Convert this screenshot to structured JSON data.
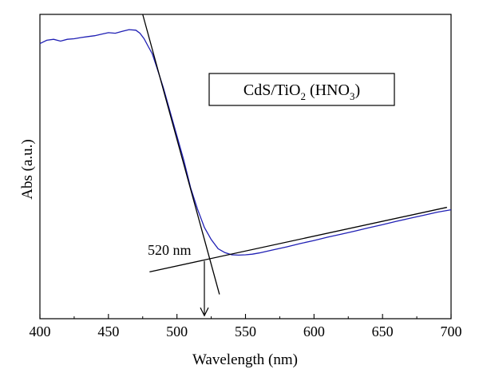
{
  "chart_data": {
    "type": "line",
    "title": "",
    "xlabel": "Wavelength (nm)",
    "ylabel": "Abs (a.u.)",
    "xlim": [
      400,
      700
    ],
    "ylim": [
      0,
      1
    ],
    "xticks": [
      "400",
      "450",
      "500",
      "550",
      "600",
      "650",
      "700"
    ],
    "y_tick_labels_shown": false,
    "grid": false,
    "legend": {
      "placement": "top-right",
      "parts": {
        "a": "CdS/TiO",
        "a_sub": "2",
        "b": " (HNO",
        "b_sub": "3",
        "c": ")"
      }
    },
    "series": [
      {
        "color": "#1f1fb4",
        "x": [
          400,
          405,
          410,
          415,
          420,
          425,
          430,
          435,
          440,
          445,
          450,
          455,
          460,
          465,
          470,
          473,
          476,
          479,
          482,
          485,
          490,
          495,
          500,
          505,
          510,
          515,
          520,
          525,
          530,
          535,
          540,
          545,
          550,
          555,
          560,
          570,
          580,
          590,
          600,
          610,
          620,
          630,
          640,
          650,
          660,
          670,
          680,
          690,
          700
        ],
        "y": [
          0.904,
          0.915,
          0.918,
          0.912,
          0.918,
          0.92,
          0.924,
          0.927,
          0.93,
          0.935,
          0.94,
          0.938,
          0.944,
          0.95,
          0.948,
          0.938,
          0.92,
          0.895,
          0.87,
          0.83,
          0.76,
          0.68,
          0.6,
          0.52,
          0.43,
          0.36,
          0.3,
          0.26,
          0.23,
          0.217,
          0.21,
          0.209,
          0.21,
          0.212,
          0.216,
          0.226,
          0.236,
          0.247,
          0.257,
          0.268,
          0.278,
          0.288,
          0.299,
          0.309,
          0.32,
          0.33,
          0.34,
          0.35,
          0.358
        ]
      }
    ],
    "tangent_lines": [
      {
        "color": "#000000",
        "x": [
          475,
          531
        ],
        "y": [
          1.0,
          0.08
        ]
      },
      {
        "color": "#000000",
        "x": [
          480,
          697
        ],
        "y": [
          0.154,
          0.366
        ]
      }
    ],
    "annotation": {
      "label": "520 nm",
      "x": 520,
      "y_from": 0.19,
      "y_to": 0.01
    }
  }
}
